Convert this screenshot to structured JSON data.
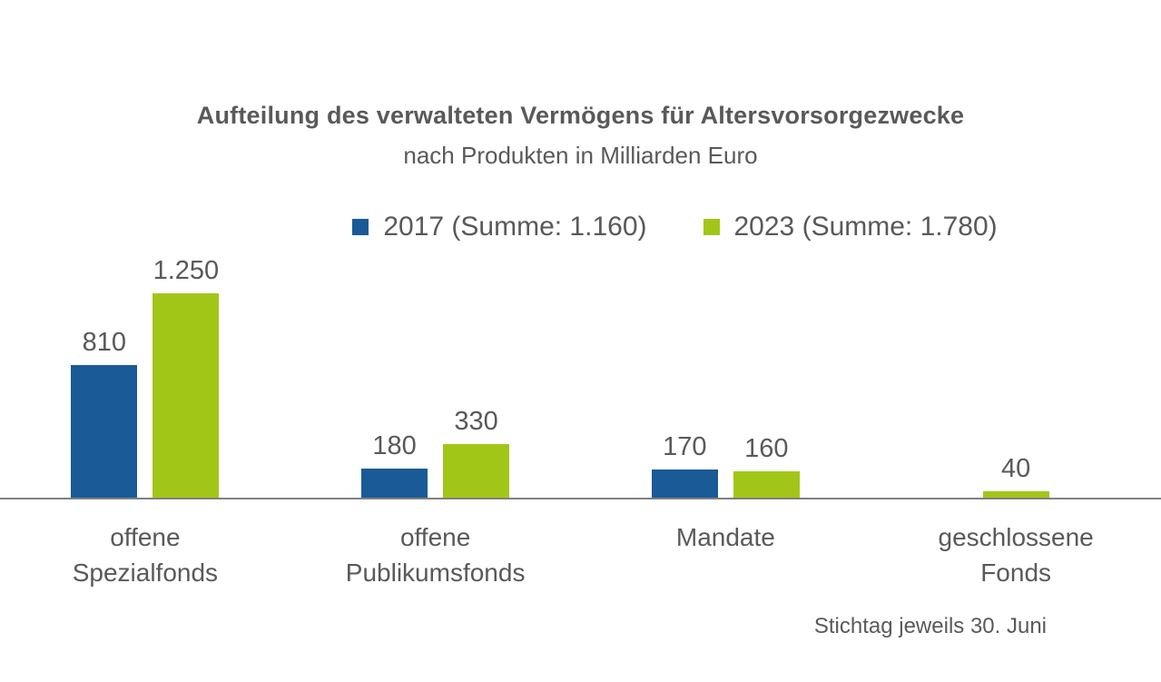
{
  "colors": {
    "series_2017": "#1a5a96",
    "series_2023": "#a2c617",
    "axis": "#808080",
    "text": "#595959"
  },
  "chart_data": {
    "type": "bar",
    "title": "Aufteilung des verwalteten Vermögens für Altersvorsorgezwecke",
    "subtitle": "nach Produkten in Milliarden Euro",
    "unit": "Milliarden Euro",
    "categories": [
      "offene\nSpezialfonds",
      "offene\nPublikumsfonds",
      "Mandate",
      "geschlossene\nFonds"
    ],
    "series": [
      {
        "name": "2017",
        "legend_label": "2017 (Summe: 1.160)",
        "color": "#1a5a96",
        "values": [
          810,
          180,
          170,
          0
        ],
        "labels": [
          "810",
          "180",
          "170",
          ""
        ]
      },
      {
        "name": "2023",
        "legend_label": "2023 (Summe: 1.780)",
        "color": "#a2c617",
        "values": [
          1250,
          330,
          160,
          40
        ],
        "labels": [
          "1.250",
          "330",
          "160",
          "40"
        ]
      }
    ],
    "ylim": [
      0,
      1250
    ],
    "grid": false,
    "legend_position": "top",
    "footnote": "Stichtag jeweils 30. Juni"
  }
}
